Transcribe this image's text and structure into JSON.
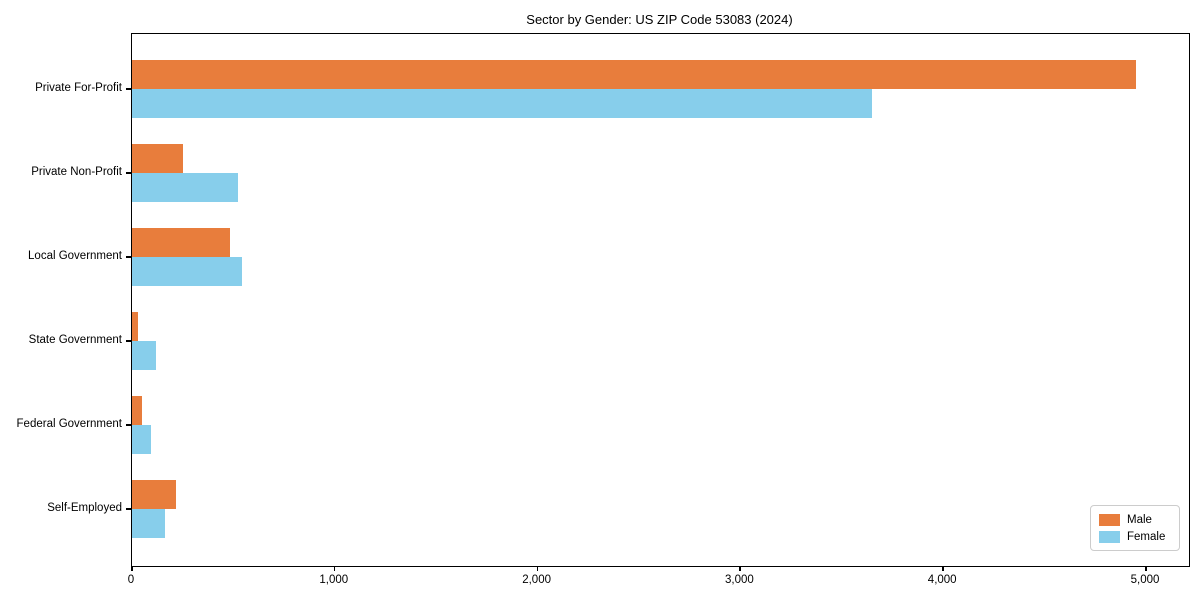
{
  "title": "Sector by Gender: US ZIP Code 53083 (2024)",
  "legend": {
    "position": "lower right",
    "items": [
      {
        "label": "Male",
        "color": "#E87D3C"
      },
      {
        "label": "Female",
        "color": "#87CEEB"
      }
    ]
  },
  "axes": {
    "x_tick_labels": [
      "0",
      "1,000",
      "2,000",
      "3,000",
      "4,000",
      "5,000"
    ],
    "x_ticks": [
      0,
      1000,
      2000,
      3000,
      4000,
      5000
    ]
  },
  "chart_data": {
    "type": "bar",
    "orientation": "horizontal",
    "title": "Sector by Gender: US ZIP Code 53083 (2024)",
    "categories": [
      "Private For-Profit",
      "Private Non-Profit",
      "Local Government",
      "State Government",
      "Federal Government",
      "Self-Employed"
    ],
    "series": [
      {
        "name": "Male",
        "color": "#E87D3C",
        "values": [
          4950,
          250,
          485,
          30,
          48,
          215
        ]
      },
      {
        "name": "Female",
        "color": "#87CEEB",
        "values": [
          3650,
          525,
          540,
          120,
          92,
          162
        ]
      }
    ],
    "xlabel": "",
    "ylabel": "",
    "xlim": [
      0,
      5210
    ],
    "x_ticks": [
      0,
      1000,
      2000,
      3000,
      4000,
      5000
    ],
    "x_tick_labels": [
      "0",
      "1,000",
      "2,000",
      "3,000",
      "4,000",
      "5,000"
    ],
    "grid": false,
    "legend_position": "lower right"
  }
}
